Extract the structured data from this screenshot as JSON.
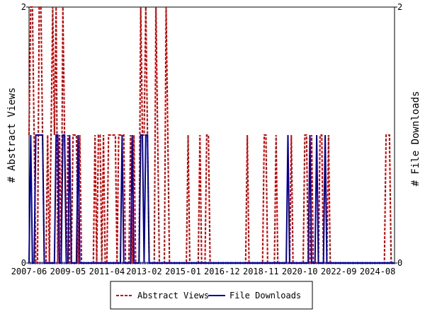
{
  "chart_data": {
    "type": "line",
    "y_label": "# Abstract Views",
    "y2_label": "# File Downloads",
    "categories": [
      "2007-06",
      null,
      null,
      null,
      null,
      null,
      null,
      null,
      null,
      null,
      null,
      null,
      null,
      null,
      null,
      null,
      null,
      null,
      null,
      null,
      null,
      null,
      null,
      "2009-05",
      null,
      null,
      null,
      null,
      null,
      null,
      null,
      null,
      null,
      null,
      null,
      null,
      null,
      null,
      null,
      null,
      null,
      null,
      null,
      null,
      null,
      null,
      "2011-04",
      null,
      null,
      null,
      null,
      null,
      null,
      null,
      null,
      null,
      null,
      null,
      null,
      null,
      null,
      null,
      null,
      null,
      null,
      null,
      null,
      null,
      "2013-02",
      null,
      null,
      null,
      null,
      null,
      null,
      null,
      null,
      null,
      null,
      null,
      null,
      null,
      null,
      null,
      null,
      null,
      null,
      null,
      null,
      null,
      null,
      "2015-01",
      null,
      null,
      null,
      null,
      null,
      null,
      null,
      null,
      null,
      null,
      null,
      null,
      null,
      null,
      null,
      null,
      null,
      null,
      null,
      null,
      null,
      null,
      "2016-12",
      null,
      null,
      null,
      null,
      null,
      null,
      null,
      null,
      null,
      null,
      null,
      null,
      null,
      null,
      null,
      null,
      null,
      null,
      null,
      null,
      null,
      null,
      "2018-11",
      null,
      null,
      null,
      null,
      null,
      null,
      null,
      null,
      null,
      null,
      null,
      null,
      null,
      null,
      null,
      null,
      null,
      null,
      null,
      null,
      null,
      null,
      "2020-10",
      null,
      null,
      null,
      null,
      null,
      null,
      null,
      null,
      null,
      null,
      null,
      null,
      null,
      null,
      null,
      null,
      null,
      null,
      null,
      null,
      null,
      null,
      "2022-09",
      null,
      null,
      null,
      null,
      null,
      null,
      null,
      null,
      null,
      null,
      null,
      null,
      null,
      null,
      null,
      null,
      null,
      null,
      null,
      null,
      null,
      null,
      "2024-08",
      null,
      null,
      null,
      null,
      null,
      null,
      null,
      null,
      null,
      null
    ],
    "series": [
      {
        "name": "Abstract Views",
        "color": "#cc0000",
        "dashed": true,
        "values": [
          1,
          2,
          2,
          1,
          0,
          0,
          2,
          2,
          1,
          0,
          0,
          1,
          0,
          1,
          2,
          1,
          2,
          0,
          1,
          0,
          2,
          1,
          0,
          1,
          0,
          0,
          1,
          1,
          1,
          0,
          1,
          0,
          0,
          0,
          0,
          0,
          0,
          0,
          0,
          1,
          0,
          1,
          1,
          0,
          1,
          0,
          0,
          1,
          1,
          1,
          1,
          1,
          0,
          1,
          1,
          1,
          1,
          0,
          0,
          0,
          1,
          0,
          1,
          0,
          0,
          0,
          2,
          1,
          1,
          2,
          1,
          0,
          0,
          0,
          0,
          2,
          1,
          0,
          0,
          0,
          0,
          2,
          1,
          0,
          0,
          0,
          0,
          0,
          0,
          0,
          0,
          0,
          0,
          0,
          1,
          0,
          0,
          0,
          0,
          0,
          0,
          1,
          0,
          0,
          0,
          1,
          1,
          0,
          0,
          0,
          0,
          0,
          0,
          0,
          0,
          0,
          0,
          0,
          0,
          0,
          0,
          0,
          0,
          0,
          0,
          0,
          0,
          0,
          0,
          1,
          0,
          0,
          0,
          0,
          0,
          0,
          0,
          0,
          0,
          1,
          1,
          0,
          0,
          0,
          0,
          0,
          1,
          0,
          0,
          0,
          0,
          0,
          0,
          0,
          0,
          1,
          0,
          0,
          0,
          0,
          0,
          0,
          0,
          1,
          1,
          0,
          0,
          1,
          0,
          0,
          0,
          0,
          1,
          1,
          0,
          0,
          0,
          1,
          0,
          0,
          0,
          0,
          0,
          0,
          0,
          0,
          0,
          0,
          0,
          0,
          0,
          0,
          0,
          0,
          0,
          0,
          0,
          0,
          0,
          0,
          0,
          0,
          0,
          0,
          0,
          0,
          0,
          0,
          0,
          0,
          0,
          1,
          1,
          1,
          0,
          0,
          0
        ]
      },
      {
        "name": "File Downloads",
        "color": "#000099",
        "axis": "y2",
        "values": [
          0,
          1,
          0,
          0,
          1,
          1,
          1,
          1,
          1,
          0,
          0,
          0,
          0,
          0,
          0,
          0,
          1,
          1,
          0,
          0,
          1,
          1,
          0,
          0,
          1,
          0,
          0,
          0,
          0,
          1,
          0,
          0,
          0,
          0,
          0,
          0,
          0,
          0,
          0,
          0,
          0,
          0,
          0,
          0,
          0,
          0,
          0,
          0,
          0,
          0,
          0,
          0,
          0,
          0,
          0,
          1,
          0,
          0,
          0,
          0,
          0,
          1,
          0,
          0,
          0,
          0,
          1,
          1,
          0,
          1,
          1,
          0,
          0,
          0,
          0,
          0,
          0,
          0,
          0,
          0,
          0,
          0,
          0,
          0,
          0,
          0,
          0,
          0,
          0,
          0,
          0,
          0,
          0,
          0,
          0,
          0,
          0,
          0,
          0,
          0,
          0,
          0,
          0,
          0,
          0,
          0,
          0,
          0,
          0,
          0,
          0,
          0,
          0,
          0,
          0,
          0,
          0,
          0,
          0,
          0,
          0,
          0,
          0,
          0,
          0,
          0,
          0,
          0,
          0,
          0,
          0,
          0,
          0,
          0,
          0,
          0,
          0,
          0,
          0,
          0,
          0,
          0,
          0,
          0,
          0,
          0,
          0,
          0,
          0,
          0,
          0,
          0,
          0,
          1,
          0,
          0,
          0,
          0,
          0,
          0,
          0,
          0,
          0,
          0,
          0,
          0,
          1,
          0,
          0,
          0,
          1,
          0,
          0,
          0,
          0,
          1,
          0,
          0,
          0,
          0,
          0,
          0,
          0,
          0,
          0,
          0,
          0,
          0,
          0,
          0,
          0,
          0,
          0,
          0,
          0,
          0,
          0,
          0,
          0,
          0,
          0,
          0,
          0,
          0,
          0,
          0,
          0,
          0,
          0,
          0,
          0,
          0,
          0,
          0,
          0,
          0,
          0
        ]
      }
    ],
    "ylim": [
      0,
      2
    ],
    "yticks": [
      0,
      2
    ],
    "y2lim": [
      0,
      2
    ],
    "y2ticks": [
      0,
      2
    ]
  }
}
